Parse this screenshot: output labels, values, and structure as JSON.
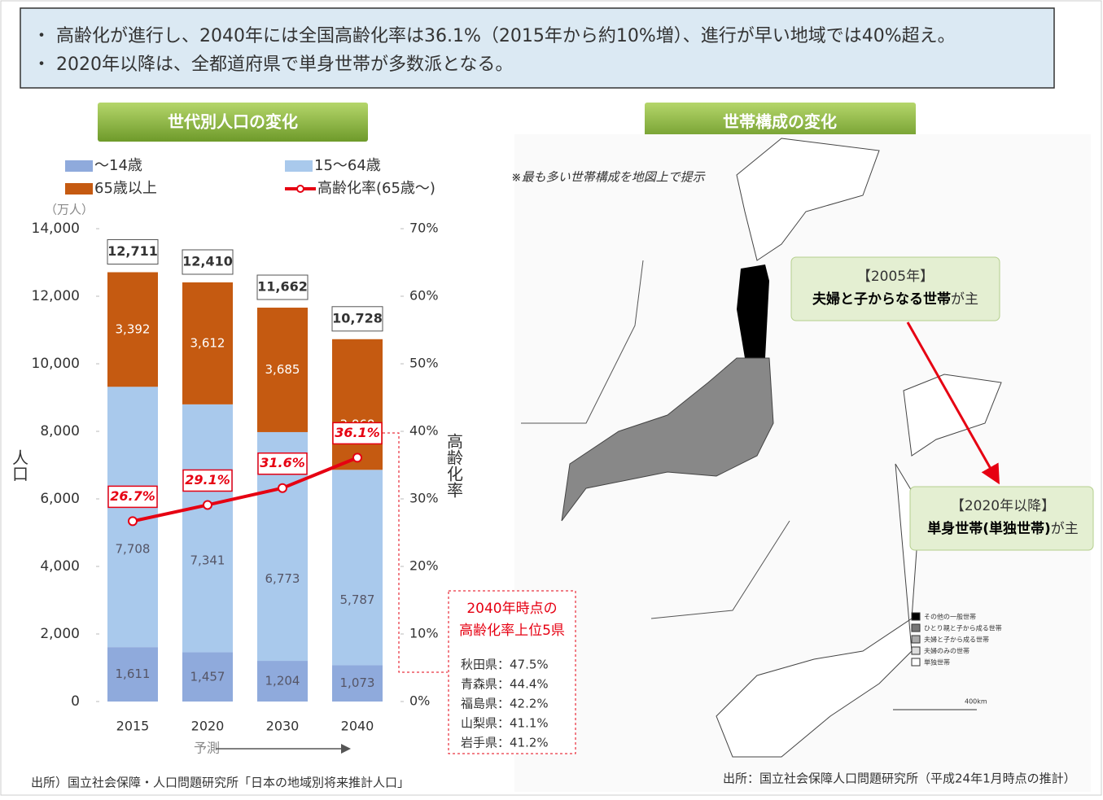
{
  "header": {
    "bullets": [
      "・ 高齢化が進行し、2040年には全国高齢化率は36.1%（2015年から約10%増）、進行が早い地域では40%超え。",
      "・ 2020年以降は、全都道府県で単身世帯が多数派となる。"
    ]
  },
  "chart_data": {
    "type": "bar",
    "stacked": true,
    "title": "世代別人口の変化",
    "y_unit": "（万人）",
    "y_label": "人口",
    "y2_label": "高齢化率",
    "categories": [
      "2015",
      "2020",
      "2030",
      "2040"
    ],
    "forecast_label": "予測",
    "series": [
      {
        "name": "～14歳",
        "color": "#8faadc",
        "values": [
          1611,
          1457,
          1204,
          1073
        ],
        "value_labels": [
          "1,611",
          "1,457",
          "1,204",
          "1,073"
        ]
      },
      {
        "name": "15～64歳",
        "color": "#a9c9ec",
        "values": [
          7708,
          7341,
          6773,
          5787
        ],
        "value_labels": [
          "7,708",
          "7,341",
          "6,773",
          "5,787"
        ]
      },
      {
        "name": "65歳以上",
        "color": "#c55a11",
        "values": [
          3392,
          3612,
          3685,
          3868
        ],
        "value_labels": [
          "3,392",
          "3,612",
          "3,685",
          "3,868"
        ]
      },
      {
        "name": "高齢化率(65歳～)",
        "type": "line",
        "axis": "y2",
        "color": "#e60012",
        "values": [
          26.7,
          29.1,
          31.6,
          36.1
        ],
        "value_labels": [
          "26.7%",
          "29.1%",
          "31.6%",
          "36.1%"
        ]
      }
    ],
    "totals": [
      12711,
      12410,
      11662,
      10728
    ],
    "total_labels": [
      "12,711",
      "12,410",
      "11,662",
      "10,728"
    ],
    "ylim": [
      0,
      14000
    ],
    "yticks": [
      0,
      {
        "value": 2000,
        "label": "2,000"
      },
      {
        "value": 4000,
        "label": "4,000"
      },
      {
        "value": 6000,
        "label": "6,000"
      },
      {
        "value": 8000,
        "label": "8,000"
      },
      {
        "value": 10000,
        "label": "10,000"
      },
      {
        "value": 12000,
        "label": "12,000"
      },
      {
        "value": 14000,
        "label": "14,000"
      }
    ],
    "y2lim": [
      0,
      70
    ],
    "y2ticks": [
      {
        "value": 0,
        "label": "0%"
      },
      {
        "value": 10,
        "label": "10%"
      },
      {
        "value": 20,
        "label": "20%"
      },
      {
        "value": 30,
        "label": "30%"
      },
      {
        "value": 40,
        "label": "40%"
      },
      {
        "value": 50,
        "label": "50%"
      },
      {
        "value": 60,
        "label": "60%"
      },
      {
        "value": 70,
        "label": "70%"
      }
    ],
    "callout": {
      "title": [
        "2040年時点の",
        "高齢化率上位5県"
      ],
      "items": [
        "秋田県：47.5%",
        "青森県：44.4%",
        "福島県：42.2%",
        "山梨県：41.1%",
        "岩手県：41.2%"
      ]
    },
    "source": "出所）国立社会保障・人口問題研究所「日本の地域別将来推計人口」"
  },
  "map_panel": {
    "title": "世帯構成の変化",
    "note": "※最も多い世帯構成を地図上で提示",
    "box_2005": {
      "line1": "【2005年】",
      "bold": "夫婦と子からなる世帯",
      "suffix": "が主"
    },
    "box_2020": {
      "line1": "【2020年以降】",
      "bold": "単身世帯(単独世帯)",
      "suffix": "が主"
    },
    "legend": [
      "その他の一般世帯",
      "ひとり親と子から成る世帯",
      "夫婦と子から成る世帯",
      "夫婦のみの世帯",
      "単独世帯"
    ],
    "scale": "400km",
    "source": "出所：国立社会保障人口問題研究所（平成24年1月時点の推計）"
  }
}
